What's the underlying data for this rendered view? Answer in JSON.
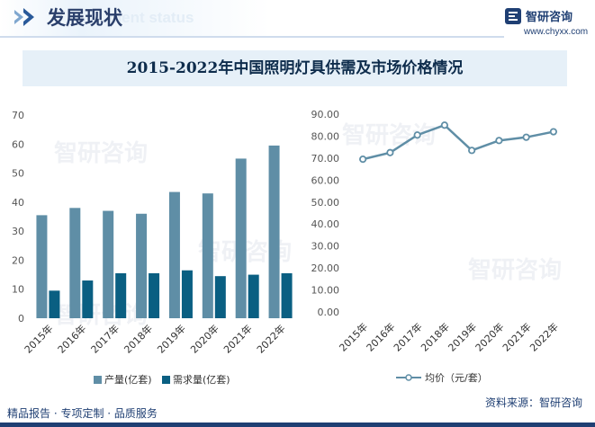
{
  "header": {
    "section_title": "发展现状",
    "section_subtitle": "ment status",
    "brand_name": "智研咨询",
    "brand_url": "www.chyxx.com"
  },
  "chart_title": "2015-2022年中国照明灯具供需及市场价格情况",
  "footer": {
    "left": "精品报告 · 专项定制 · 品质服务",
    "source": "资料来源：智研咨询"
  },
  "watermark": "智研咨询",
  "colors": {
    "production": "#5f8ea6",
    "demand": "#0a5f82",
    "price_line": "#5f8ea6",
    "title_bg": "#e6f0f8",
    "brand": "#1f3f73"
  },
  "chart_data": [
    {
      "type": "bar",
      "categories": [
        "2015年",
        "2016年",
        "2017年",
        "2018年",
        "2019年",
        "2020年",
        "2021年",
        "2022年"
      ],
      "series": [
        {
          "name": "产量(亿套)",
          "values": [
            35.5,
            38,
            37,
            36,
            43.5,
            43,
            55,
            59.5
          ]
        },
        {
          "name": "需求量(亿套)",
          "values": [
            9.5,
            13,
            15.5,
            15.5,
            16.5,
            14.5,
            15,
            15.5
          ]
        }
      ],
      "ylim": [
        0,
        70
      ],
      "yticks": [
        "0",
        "10",
        "20",
        "30",
        "40",
        "50",
        "60",
        "70"
      ],
      "grid": false,
      "legend": "bottom"
    },
    {
      "type": "line",
      "categories": [
        "2015年",
        "2016年",
        "2017年",
        "2018年",
        "2019年",
        "2020年",
        "2021年",
        "2022年"
      ],
      "series": [
        {
          "name": "均价（元/套）",
          "values": [
            69.5,
            72.5,
            80.5,
            85,
            73.5,
            78,
            79.5,
            82
          ]
        }
      ],
      "ylim": [
        0,
        90
      ],
      "yticks": [
        "0.00",
        "10.00",
        "20.00",
        "30.00",
        "40.00",
        "50.00",
        "60.00",
        "70.00",
        "80.00",
        "90.00"
      ],
      "grid": false,
      "legend": "bottom"
    }
  ]
}
